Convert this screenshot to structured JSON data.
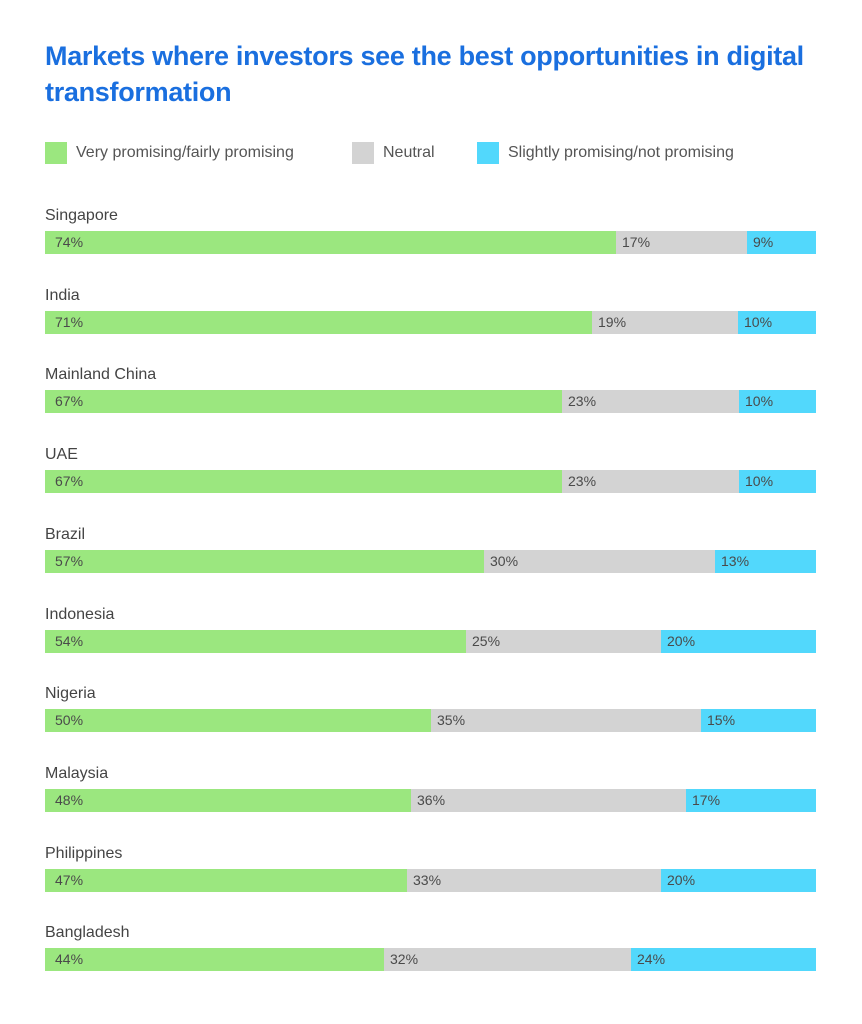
{
  "chart_data": {
    "type": "bar",
    "orientation": "horizontal",
    "stacked": true,
    "title": "Markets where investors see the best opportunities in digital transformation",
    "xlabel": "",
    "ylabel": "",
    "xlim": [
      0,
      100
    ],
    "grid": false,
    "legend_position": "top-left",
    "legend": [
      {
        "name": "Very promising/fairly promising",
        "color": "#9be77f"
      },
      {
        "name": "Neutral",
        "color": "#d3d3d3"
      },
      {
        "name": "Slightly promising/not promising",
        "color": "#52d8fc"
      }
    ],
    "categories": [
      "Singapore",
      "India",
      "Mainland China",
      "UAE",
      "Brazil",
      "Indonesia",
      "Nigeria",
      "Malaysia",
      "Philippines",
      "Bangladesh"
    ],
    "series": [
      {
        "name": "Very promising/fairly promising",
        "values": [
          74,
          71,
          67,
          67,
          57,
          54,
          50,
          48,
          47,
          44
        ]
      },
      {
        "name": "Neutral",
        "values": [
          17,
          19,
          23,
          23,
          30,
          25,
          35,
          36,
          33,
          32
        ]
      },
      {
        "name": "Slightly promising/not promising",
        "values": [
          9,
          10,
          10,
          10,
          13,
          20,
          15,
          17,
          20,
          24
        ]
      }
    ],
    "value_suffix": "%"
  }
}
